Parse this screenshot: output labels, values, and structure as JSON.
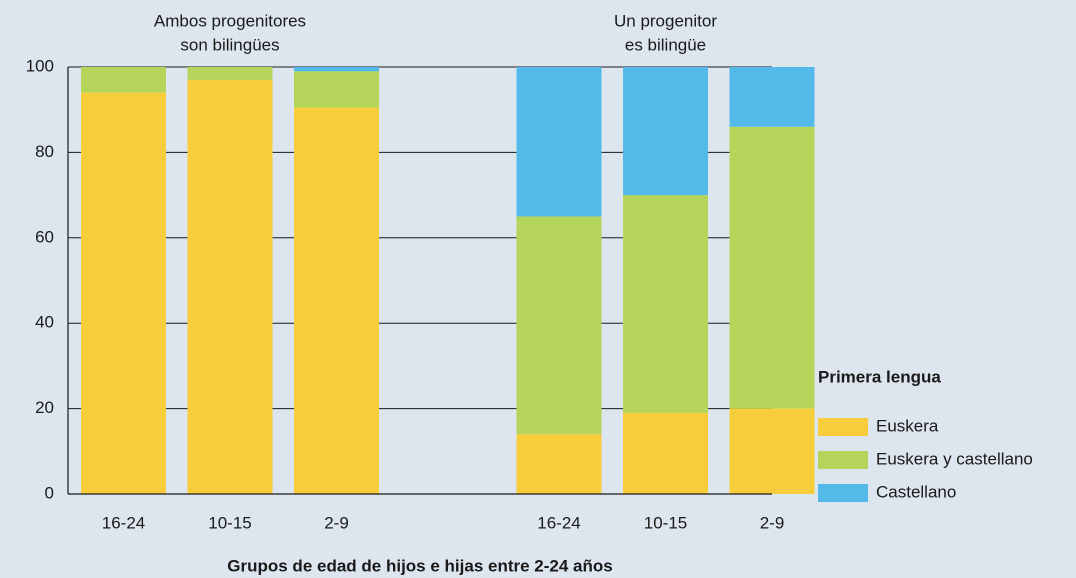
{
  "chart_data": {
    "type": "stacked_bar",
    "xlabel": "Grupos de edad de hijos e hijas entre 2-24 años",
    "groups": [
      {
        "label": [
          "Ambos progenitores",
          "son bilingües"
        ],
        "categories": [
          "16-24",
          "10-15",
          "2-9"
        ]
      },
      {
        "label": [
          "Un progenitor",
          "es bilingüe"
        ],
        "categories": [
          "16-24",
          "10-15",
          "2-9"
        ]
      }
    ],
    "series": [
      {
        "name": "Euskera",
        "color": "#f7cd3c",
        "values": [
          94,
          97,
          90.5,
          14,
          19,
          20
        ]
      },
      {
        "name": "Euskera y castellano",
        "color": "#b5d55a",
        "values": [
          6,
          3,
          8.5,
          51,
          51,
          66
        ]
      },
      {
        "name": "Castellano",
        "color": "#52b9e8",
        "values": [
          0,
          0,
          1,
          35,
          30,
          14
        ]
      }
    ],
    "legend_title": "Primera lengua",
    "ylim": [
      0,
      100
    ],
    "yticks": [
      0,
      20,
      40,
      60,
      80,
      100
    ],
    "grid": true
  }
}
